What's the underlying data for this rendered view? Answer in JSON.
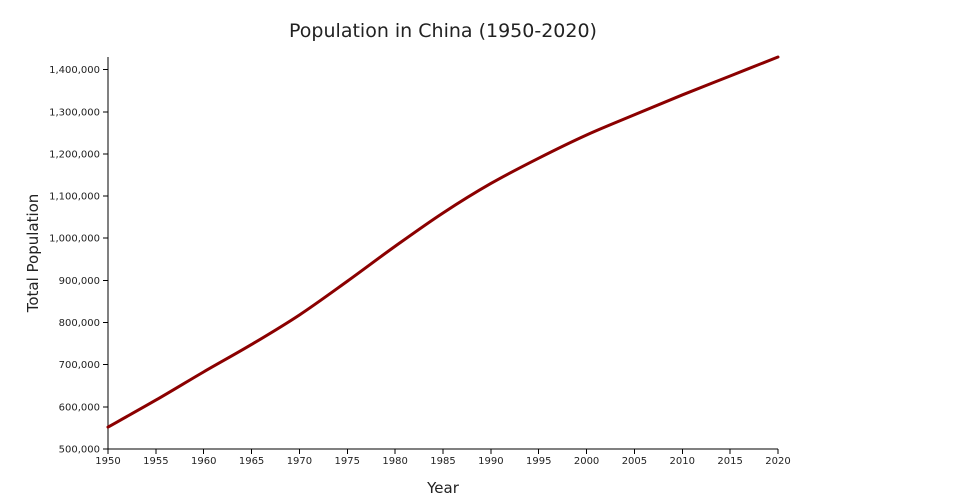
{
  "chart_data": {
    "type": "line",
    "title": "Population in China (1950-2020)",
    "xlabel": "Year",
    "ylabel": "Total Population",
    "xlim": [
      1950,
      2020
    ],
    "ylim": [
      500000,
      1430000
    ],
    "xticks": [
      1950,
      1955,
      1960,
      1965,
      1970,
      1975,
      1980,
      1985,
      1990,
      1995,
      2000,
      2005,
      2010,
      2015,
      2020
    ],
    "xtick_labels": [
      "1950",
      "1955",
      "1960",
      "1965",
      "1970",
      "1975",
      "1980",
      "1985",
      "1990",
      "1995",
      "2000",
      "2005",
      "2010",
      "2015",
      "2020"
    ],
    "yticks": [
      500000,
      600000,
      700000,
      800000,
      900000,
      1000000,
      1100000,
      1200000,
      1300000,
      1400000
    ],
    "ytick_labels": [
      "500,000",
      "600,000",
      "700,000",
      "800,000",
      "900,000",
      "1,000,000",
      "1,100,000",
      "1,200,000",
      "1,300,000",
      "1,400,000"
    ],
    "grid": false,
    "series": [
      {
        "color": "#8b0000",
        "x": [
          1950,
          1955,
          1960,
          1965,
          1970,
          1975,
          1980,
          1985,
          1990,
          1995,
          2000,
          2005,
          2010,
          2015,
          2020
        ],
        "y": [
          552000,
          616000,
          683000,
          748000,
          818000,
          898000,
          981000,
          1060000,
          1130000,
          1190000,
          1245000,
          1293000,
          1340000,
          1385000,
          1430000
        ]
      }
    ]
  }
}
